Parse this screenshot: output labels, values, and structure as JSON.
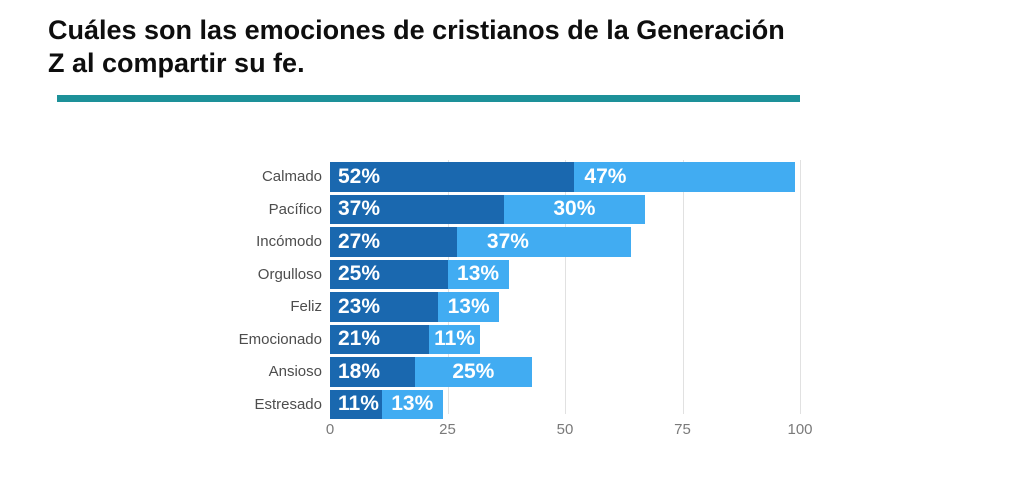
{
  "page": {
    "background": "#ffffff"
  },
  "title": {
    "line1": "Cuáles son las emociones de cristianos de la Generación",
    "line2": "Z al compartir su fe."
  },
  "colors": {
    "title_text": "#0e0e0e",
    "divider_teal": "#1d9199",
    "bar_dark_blue": "#1a68af",
    "bar_light_blue": "#41acf2",
    "value_label_text": "#ffffff",
    "category_text": "#4d4d4d",
    "axis_tick_text": "#7a7a7a",
    "gridline": "#e1e1e1"
  },
  "chart_data": {
    "type": "bar",
    "orientation": "horizontal",
    "stacked": true,
    "title": "Cuáles son las emociones de cristianos de la Generación Z al compartir su fe.",
    "categories": [
      "Calmado",
      "Pacífico",
      "Incómodo",
      "Orgulloso",
      "Feliz",
      "Emocionado",
      "Ansioso",
      "Estresado"
    ],
    "series": [
      {
        "name": "segment-1",
        "color": "#1a68af",
        "values": [
          52,
          37,
          27,
          25,
          23,
          21,
          18,
          11
        ]
      },
      {
        "name": "segment-2",
        "color": "#41acf2",
        "values": [
          47,
          30,
          37,
          13,
          13,
          11,
          25,
          13
        ]
      }
    ],
    "value_suffix": "%",
    "x_ticks": [
      0,
      25,
      50,
      75,
      100
    ],
    "xlim": [
      0,
      100
    ],
    "grid": "vertical",
    "legend": "none"
  }
}
